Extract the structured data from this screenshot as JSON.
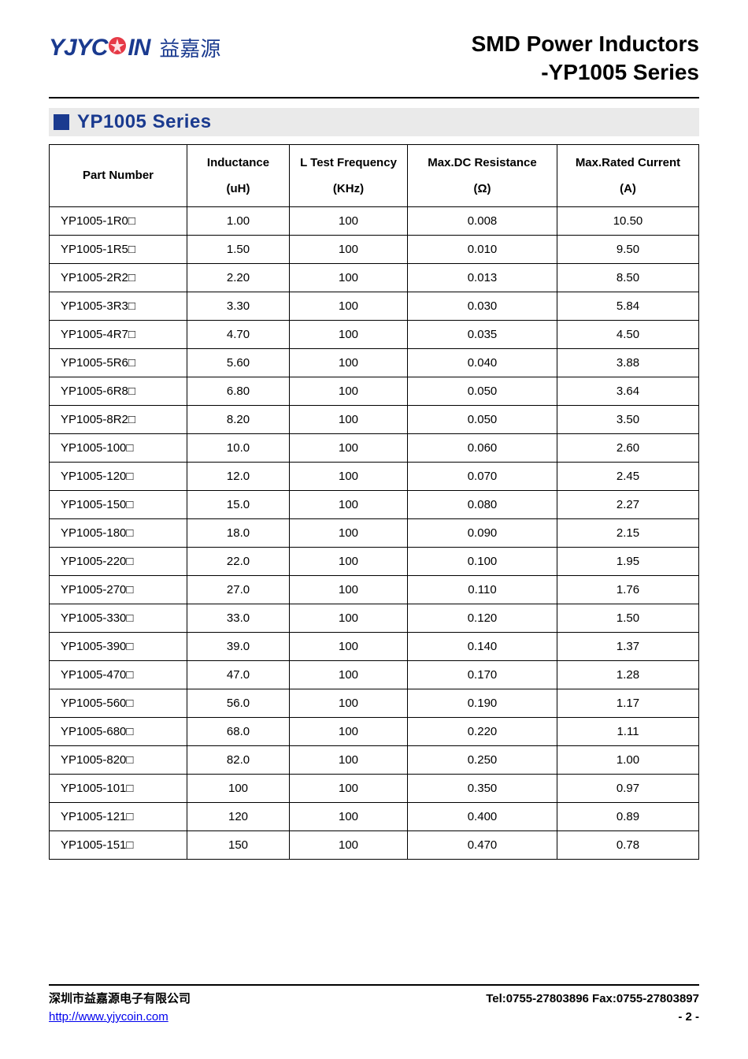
{
  "header": {
    "logo_en_1": "YJYC",
    "logo_en_2": "IN",
    "logo_cn": "益嘉源",
    "title_line1": "SMD Power Inductors",
    "title_line2": "-YP1005 Series"
  },
  "section": {
    "title": "YP1005 Series"
  },
  "table": {
    "columns": [
      {
        "label": "Part Number",
        "unit": ""
      },
      {
        "label": "Inductance",
        "unit": "(uH)"
      },
      {
        "label": "L Test Frequency",
        "unit": "(KHz)"
      },
      {
        "label": "Max.DC Resistance",
        "unit": "(Ω)"
      },
      {
        "label": "Max.Rated Current",
        "unit": "(A)"
      }
    ],
    "rows": [
      [
        "YP1005-1R0□",
        "1.00",
        "100",
        "0.008",
        "10.50"
      ],
      [
        "YP1005-1R5□",
        "1.50",
        "100",
        "0.010",
        "9.50"
      ],
      [
        "YP1005-2R2□",
        "2.20",
        "100",
        "0.013",
        "8.50"
      ],
      [
        "YP1005-3R3□",
        "3.30",
        "100",
        "0.030",
        "5.84"
      ],
      [
        "YP1005-4R7□",
        "4.70",
        "100",
        "0.035",
        "4.50"
      ],
      [
        "YP1005-5R6□",
        "5.60",
        "100",
        "0.040",
        "3.88"
      ],
      [
        "YP1005-6R8□",
        "6.80",
        "100",
        "0.050",
        "3.64"
      ],
      [
        "YP1005-8R2□",
        "8.20",
        "100",
        "0.050",
        "3.50"
      ],
      [
        "YP1005-100□",
        "10.0",
        "100",
        "0.060",
        "2.60"
      ],
      [
        "YP1005-120□",
        "12.0",
        "100",
        "0.070",
        "2.45"
      ],
      [
        "YP1005-150□",
        "15.0",
        "100",
        "0.080",
        "2.27"
      ],
      [
        "YP1005-180□",
        "18.0",
        "100",
        "0.090",
        "2.15"
      ],
      [
        "YP1005-220□",
        "22.0",
        "100",
        "0.100",
        "1.95"
      ],
      [
        "YP1005-270□",
        "27.0",
        "100",
        "0.110",
        "1.76"
      ],
      [
        "YP1005-330□",
        "33.0",
        "100",
        "0.120",
        "1.50"
      ],
      [
        "YP1005-390□",
        "39.0",
        "100",
        "0.140",
        "1.37"
      ],
      [
        "YP1005-470□",
        "47.0",
        "100",
        "0.170",
        "1.28"
      ],
      [
        "YP1005-560□",
        "56.0",
        "100",
        "0.190",
        "1.17"
      ],
      [
        "YP1005-680□",
        "68.0",
        "100",
        "0.220",
        "1.11"
      ],
      [
        "YP1005-820□",
        "82.0",
        "100",
        "0.250",
        "1.00"
      ],
      [
        "YP1005-101□",
        "100",
        "100",
        "0.350",
        "0.97"
      ],
      [
        "YP1005-121□",
        "120",
        "100",
        "0.400",
        "0.89"
      ],
      [
        "YP1005-151□",
        "150",
        "100",
        "0.470",
        "0.78"
      ]
    ]
  },
  "footer": {
    "company_cn": "深圳市益嘉源电子有限公司",
    "tel_fax": "Tel:0755-27803896   Fax:0755-27803897",
    "url": "http://www.yjycoin.com",
    "page": "- 2 -"
  }
}
